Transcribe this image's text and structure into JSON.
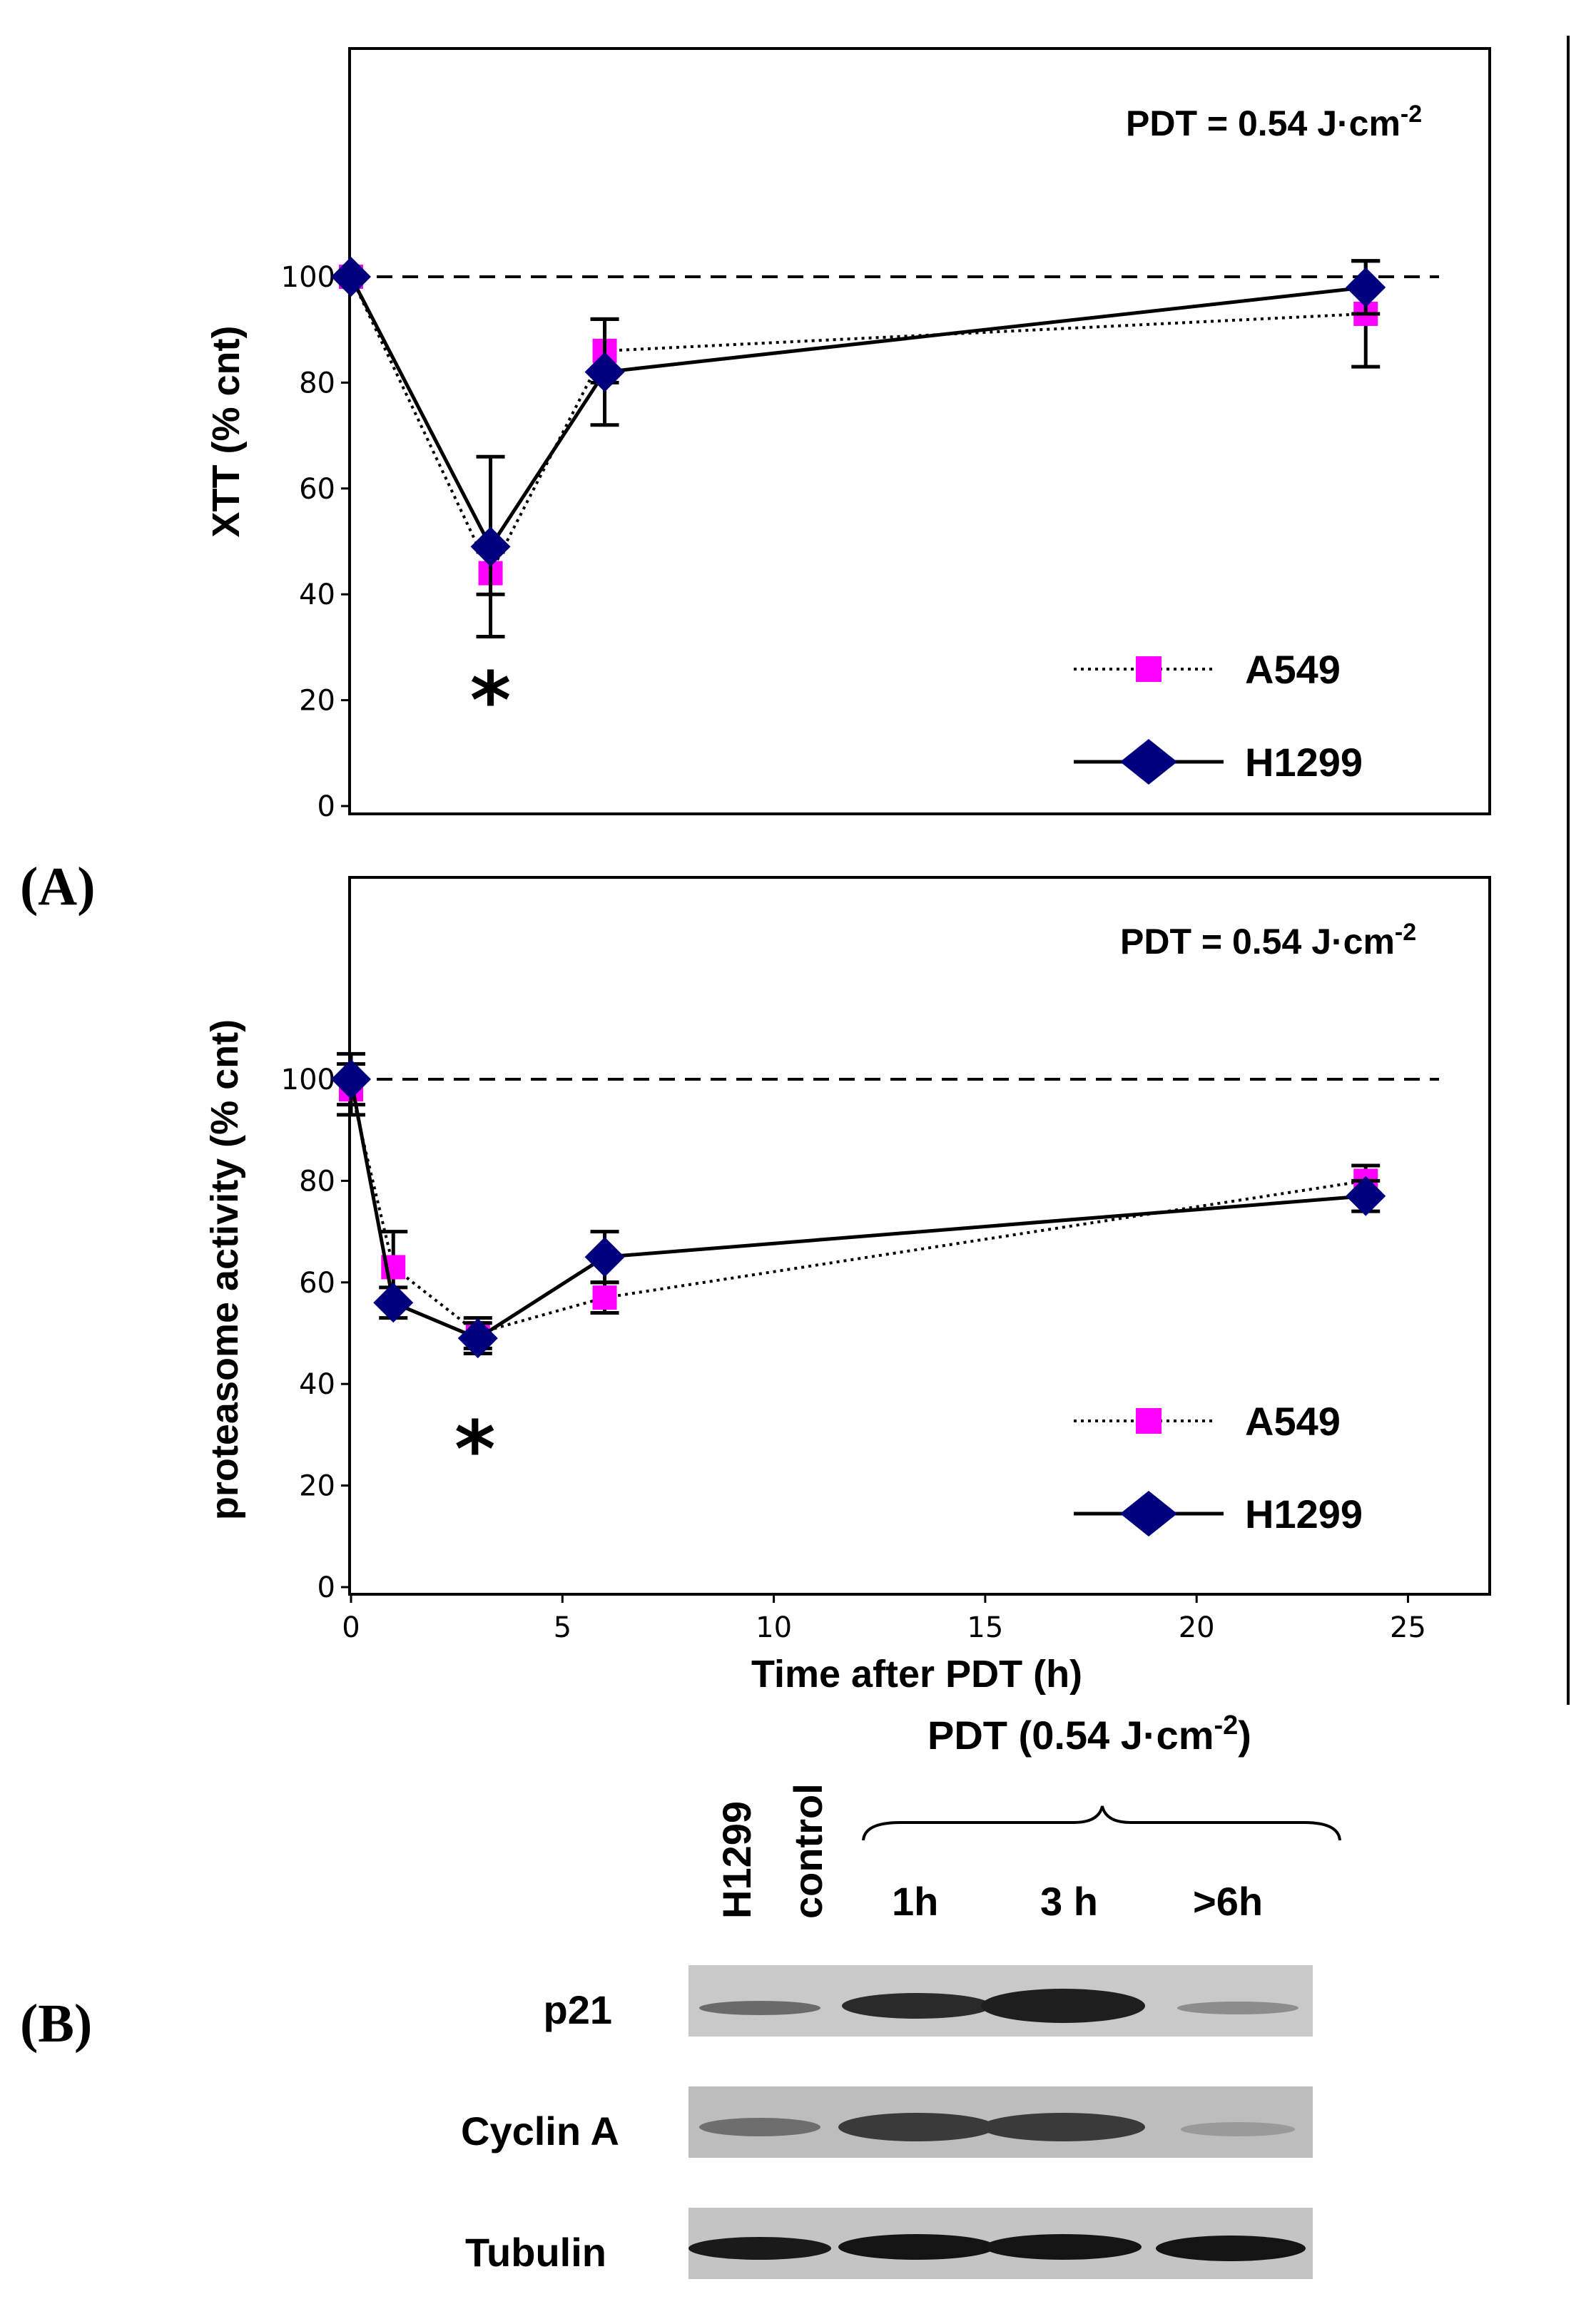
{
  "figure": {
    "panel_a_label": "(A)",
    "panel_b_label": "(B)"
  },
  "chart_data": [
    {
      "type": "line",
      "annotation": "PDT = 0.54 J·cm",
      "annotation_sup": "-2",
      "ylabel": "XTT  (% cnt)",
      "xlabel": "",
      "xlim": [
        0,
        27
      ],
      "ylim": [
        0,
        100
      ],
      "yticks": [
        0,
        20,
        40,
        60,
        80,
        100
      ],
      "reference_line": 100,
      "significance_marker": "*",
      "significance_x": 3.3,
      "series": [
        {
          "name": "A549",
          "style": "dotted",
          "marker": "square",
          "color": "#ff00ff",
          "x": [
            0,
            3.3,
            6,
            24
          ],
          "y": [
            100,
            44,
            86,
            93
          ],
          "err": [
            0,
            4,
            6,
            10
          ]
        },
        {
          "name": "H1299",
          "style": "solid",
          "marker": "diamond",
          "color": "#00007f",
          "x": [
            0,
            3.3,
            6,
            24
          ],
          "y": [
            100,
            49,
            82,
            98
          ],
          "err": [
            0,
            17,
            10,
            5
          ]
        }
      ]
    },
    {
      "type": "line",
      "annotation": "PDT = 0.54 J·cm",
      "annotation_sup": "-2",
      "ylabel": "proteasome activity (% cnt)",
      "xlabel": "Time after PDT (h)",
      "xlim": [
        0,
        27
      ],
      "ylim": [
        0,
        100
      ],
      "xticks": [
        0,
        5,
        10,
        15,
        20,
        25
      ],
      "yticks": [
        0,
        20,
        40,
        60,
        80,
        100
      ],
      "reference_line": 100,
      "significance_marker": "*",
      "significance_x": 3.1,
      "series": [
        {
          "name": "A549",
          "style": "dotted",
          "marker": "square",
          "color": "#ff00ff",
          "x": [
            0,
            1,
            3,
            6,
            24
          ],
          "y": [
            98,
            63,
            50,
            57,
            80
          ],
          "err": [
            5,
            7,
            3,
            3,
            3
          ]
        },
        {
          "name": "H1299",
          "style": "solid",
          "marker": "diamond",
          "color": "#00007f",
          "x": [
            0,
            1,
            3,
            6,
            24
          ],
          "y": [
            100,
            56,
            49,
            65,
            77
          ],
          "err": [
            5,
            3,
            3,
            5,
            3
          ]
        }
      ]
    }
  ],
  "blot": {
    "header": "PDT (0.54 J·cm",
    "header_sup": "-2",
    "header_close": ")",
    "lanes": [
      "H1299",
      "control",
      "1h",
      "3 h",
      ">6h"
    ],
    "rows": [
      "p21",
      "Cyclin A",
      "Tubulin"
    ]
  }
}
